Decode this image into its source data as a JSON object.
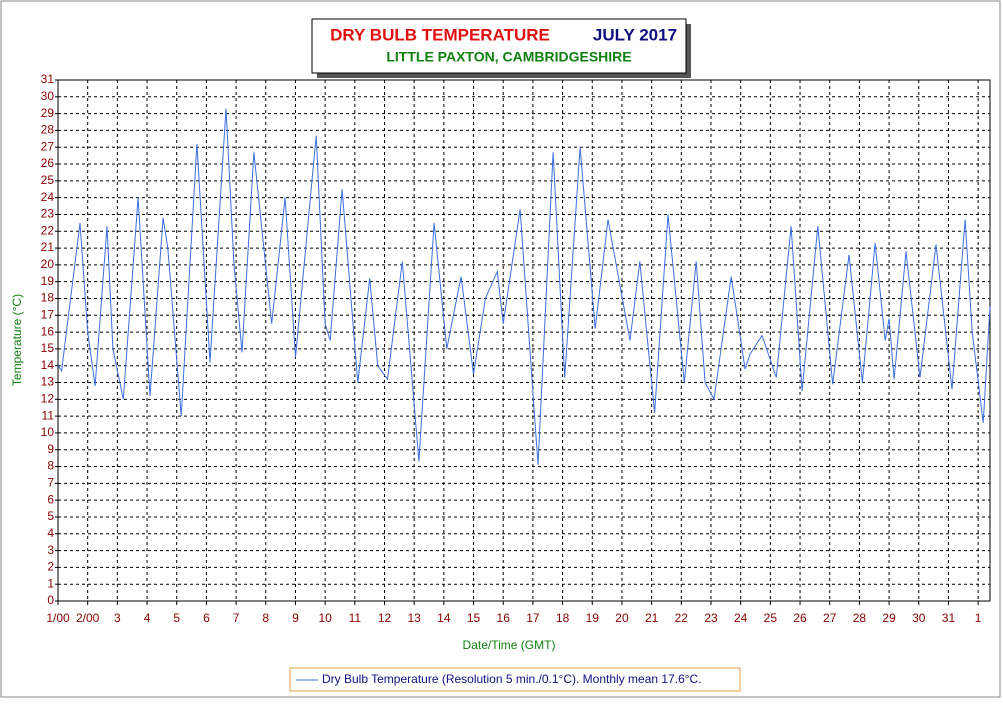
{
  "chart_data": {
    "type": "line",
    "title": "DRY BULB TEMPERATURE",
    "title_period": "JULY 2017",
    "subtitle": "LITTLE PAXTON, CAMBRIDGESHIRE",
    "x_label": "Date/Time (GMT)",
    "y_label": "Temperature (°C)",
    "xlim": [
      0,
      31.4
    ],
    "ylim": [
      0,
      31
    ],
    "grid": true,
    "legend": "bottom",
    "xticks": [
      {
        "value": 0,
        "label": "1/00"
      },
      {
        "value": 1,
        "label": "2/00"
      },
      {
        "value": 2,
        "label": "3"
      },
      {
        "value": 3,
        "label": "4"
      },
      {
        "value": 4,
        "label": "5"
      },
      {
        "value": 5,
        "label": "6"
      },
      {
        "value": 6,
        "label": "7"
      },
      {
        "value": 7,
        "label": "8"
      },
      {
        "value": 8,
        "label": "9"
      },
      {
        "value": 9,
        "label": "10"
      },
      {
        "value": 10,
        "label": "11"
      },
      {
        "value": 11,
        "label": "12"
      },
      {
        "value": 12,
        "label": "13"
      },
      {
        "value": 13,
        "label": "14"
      },
      {
        "value": 14,
        "label": "15"
      },
      {
        "value": 15,
        "label": "16"
      },
      {
        "value": 16,
        "label": "17"
      },
      {
        "value": 17,
        "label": "18"
      },
      {
        "value": 18,
        "label": "19"
      },
      {
        "value": 19,
        "label": "20"
      },
      {
        "value": 20,
        "label": "21"
      },
      {
        "value": 21,
        "label": "22"
      },
      {
        "value": 22,
        "label": "23"
      },
      {
        "value": 23,
        "label": "24"
      },
      {
        "value": 24,
        "label": "25"
      },
      {
        "value": 25,
        "label": "26"
      },
      {
        "value": 26,
        "label": "27"
      },
      {
        "value": 27,
        "label": "28"
      },
      {
        "value": 28,
        "label": "29"
      },
      {
        "value": 29,
        "label": "30"
      },
      {
        "value": 30,
        "label": "31"
      },
      {
        "value": 31,
        "label": "1"
      }
    ],
    "yticks": [
      0,
      1,
      2,
      3,
      4,
      5,
      6,
      7,
      8,
      9,
      10,
      11,
      12,
      13,
      14,
      15,
      16,
      17,
      18,
      19,
      20,
      21,
      22,
      23,
      24,
      25,
      26,
      27,
      28,
      29,
      30,
      31
    ],
    "x": [
      0,
      0.12,
      0.74,
      1.0,
      1.25,
      1.65,
      1.85,
      2.2,
      2.7,
      3.1,
      3.54,
      3.7,
      4.15,
      4.68,
      5.12,
      5.66,
      5.93,
      6.2,
      6.6,
      7.2,
      7.65,
      8.0,
      8.7,
      9.0,
      9.17,
      9.57,
      10.1,
      10.5,
      10.77,
      11.1,
      11.6,
      12.16,
      12.67,
      13.1,
      13.58,
      14.0,
      14.4,
      14.8,
      15.0,
      15.57,
      16.17,
      16.68,
      17.07,
      17.59,
      18.1,
      18.53,
      19.27,
      19.6,
      20.1,
      20.55,
      21.1,
      21.5,
      21.8,
      22.1,
      22.68,
      23.15,
      23.32,
      23.72,
      24.2,
      24.7,
      25.07,
      25.6,
      26.1,
      26.65,
      27.1,
      27.53,
      27.87,
      28.0,
      28.17,
      28.57,
      29.04,
      29.58,
      30.12,
      30.56,
      30.8,
      31.17,
      31.4
    ],
    "series": [
      {
        "name": "Dry Bulb Temperature (Resolution 5 min./0.1°C). Monthly mean 17.6°C.",
        "color": "#3b6fe0",
        "values": [
          14,
          13.7,
          22.5,
          16,
          12.8,
          22.3,
          15,
          12,
          24,
          12.2,
          22.8,
          21,
          11,
          27.2,
          14.2,
          29.3,
          20,
          14.8,
          26.7,
          16.5,
          24,
          14.5,
          27.7,
          16.5,
          15.5,
          24.5,
          13,
          19.2,
          14,
          13.2,
          20.2,
          8.3,
          22.5,
          15,
          19.3,
          13.5,
          18,
          19.6,
          16.5,
          23.3,
          8.1,
          26.7,
          13.3,
          27,
          16.2,
          22.7,
          15.5,
          20.2,
          11.2,
          23,
          13,
          20.2,
          13,
          12,
          19.3,
          13.8,
          14.7,
          15.8,
          13.3,
          22.3,
          12.5,
          22.3,
          12.9,
          20.6,
          13,
          21.3,
          15.5,
          16.8,
          13.2,
          20.8,
          13.3,
          21.2,
          12.6,
          22.7,
          16,
          10.6,
          17.5
        ]
      }
    ]
  }
}
